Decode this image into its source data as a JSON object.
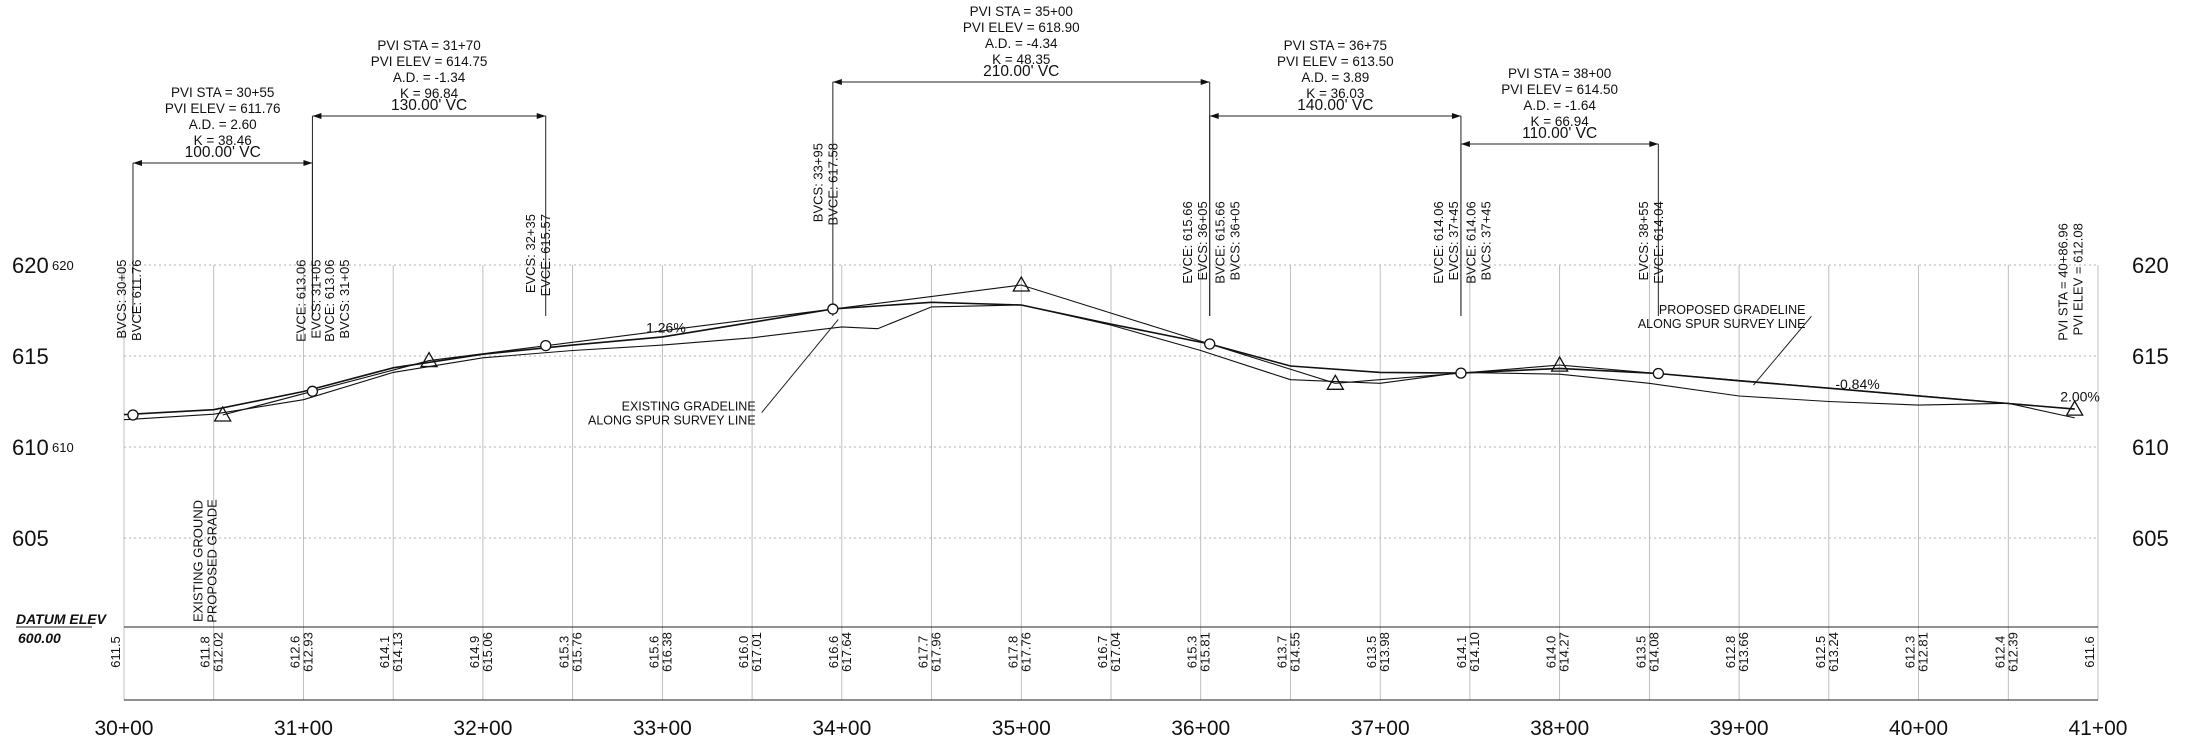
{
  "chart_data": {
    "type": "line",
    "xlim": [
      3000,
      4100
    ],
    "ylim": [
      600,
      621
    ],
    "x_ticks": [
      {
        "sta": 3000,
        "label": "30+00"
      },
      {
        "sta": 3100,
        "label": "31+00"
      },
      {
        "sta": 3200,
        "label": "32+00"
      },
      {
        "sta": 3300,
        "label": "33+00"
      },
      {
        "sta": 3400,
        "label": "34+00"
      },
      {
        "sta": 3500,
        "label": "35+00"
      },
      {
        "sta": 3600,
        "label": "36+00"
      },
      {
        "sta": 3700,
        "label": "37+00"
      },
      {
        "sta": 3800,
        "label": "38+00"
      },
      {
        "sta": 3900,
        "label": "39+00"
      },
      {
        "sta": 4000,
        "label": "40+00"
      },
      {
        "sta": 4100,
        "label": "41+00"
      }
    ],
    "y_ticks": [
      {
        "elev": 620,
        "label": "620"
      },
      {
        "elev": 615,
        "label": "615"
      },
      {
        "elev": 610,
        "label": "610"
      },
      {
        "elev": 605,
        "label": "605"
      }
    ],
    "y_ticks_small": [
      {
        "elev": 620,
        "label": "620"
      },
      {
        "elev": 610,
        "label": "610"
      }
    ],
    "datum": {
      "label": "DATUM ELEV",
      "value": "600.00"
    },
    "series": [
      {
        "name": "PROPOSED GRADELINE",
        "x": [
          3000,
          3050,
          3100,
          3150,
          3200,
          3250,
          3300,
          3350,
          3395,
          3450,
          3500,
          3550,
          3605,
          3650,
          3700,
          3745,
          3800,
          3855,
          3900,
          3950,
          4000,
          4050,
          4087
        ],
        "y": [
          611.78,
          612.05,
          613.05,
          614.35,
          615.1,
          615.6,
          616.05,
          616.85,
          617.58,
          617.95,
          617.8,
          616.75,
          615.66,
          614.45,
          614.1,
          614.06,
          614.32,
          614.04,
          613.64,
          613.23,
          612.81,
          612.39,
          612.08
        ]
      },
      {
        "name": "EXISTING GRADELINE",
        "x": [
          3000,
          3050,
          3100,
          3150,
          3200,
          3250,
          3300,
          3350,
          3400,
          3420,
          3450,
          3500,
          3550,
          3600,
          3650,
          3700,
          3745,
          3800,
          3850,
          3900,
          3950,
          4000,
          4050,
          4087
        ],
        "y": [
          611.5,
          611.8,
          612.6,
          614.1,
          614.9,
          615.3,
          615.6,
          616.0,
          616.6,
          616.5,
          617.7,
          617.8,
          616.7,
          615.3,
          613.7,
          613.5,
          614.1,
          614.0,
          613.5,
          612.8,
          612.5,
          612.3,
          612.4,
          611.6
        ]
      }
    ],
    "tangent_points": [
      {
        "x": 3055,
        "y": 611.76,
        "label": "PVI STA = 30+55"
      },
      {
        "x": 3170,
        "y": 614.75,
        "label": "PVI STA = 31+70"
      },
      {
        "x": 3500,
        "y": 618.9,
        "label": "PVI STA = 35+00"
      },
      {
        "x": 3675,
        "y": 613.5,
        "label": "PVI STA = 36+75"
      },
      {
        "x": 3800,
        "y": 614.5,
        "label": "PVI STA = 38+00"
      },
      {
        "x": 4087,
        "y": 612.08,
        "label": "PVI STA = 40+86.96"
      }
    ],
    "vc_points": [
      {
        "x": 3005,
        "y": 611.76
      },
      {
        "x": 3105,
        "y": 613.06
      },
      {
        "x": 3235,
        "y": 615.57
      },
      {
        "x": 3395,
        "y": 617.58
      },
      {
        "x": 3605,
        "y": 615.66
      },
      {
        "x": 3745,
        "y": 614.06
      },
      {
        "x": 3855,
        "y": 614.04
      }
    ],
    "curves": [
      {
        "bvc": 3005,
        "evc": 3105,
        "lines": [
          "PVI STA = 30+55",
          "PVI ELEV = 611.76",
          "A.D. = 2.60",
          "K = 38.46"
        ],
        "vc": "100.00' VC"
      },
      {
        "bvc": 3105,
        "evc": 3235,
        "lines": [
          "PVI STA = 31+70",
          "PVI ELEV = 614.75",
          "A.D. = -1.34",
          "K = 96.84"
        ],
        "vc": "130.00' VC"
      },
      {
        "bvc": 3395,
        "evc": 3605,
        "lines": [
          "PVI STA = 35+00",
          "PVI ELEV = 618.90",
          "A.D. = -4.34",
          "K = 48.35"
        ],
        "vc": "210.00' VC"
      },
      {
        "bvc": 3605,
        "evc": 3745,
        "lines": [
          "PVI STA = 36+75",
          "PVI ELEV = 613.50",
          "A.D. = 3.89",
          "K = 36.03"
        ],
        "vc": "140.00' VC"
      },
      {
        "bvc": 3745,
        "evc": 3855,
        "lines": [
          "PVI STA = 38+00",
          "PVI ELEV = 614.50",
          "A.D. = -1.64",
          "K = 66.94"
        ],
        "vc": "110.00' VC"
      }
    ],
    "station_labels": [
      {
        "x": 3000,
        "top": 620.3,
        "lines": [
          "BVCS: 30+05",
          "BVCE: 611.76"
        ]
      },
      {
        "x": 3100,
        "top": 620.3,
        "lines": [
          "EVCE: 613.06",
          "EVCS: 31+05"
        ]
      },
      {
        "x": 3116,
        "top": 620.3,
        "lines": [
          "BVCE: 613.06",
          "BVCS: 31+05"
        ]
      },
      {
        "x": 3228,
        "top": 622.8,
        "lines": [
          "EVCS: 32+35",
          "EVCE: 615.57"
        ]
      },
      {
        "x": 3388,
        "top": 626.7,
        "lines": [
          "BVCS: 33+95",
          "BVCE: 617.58"
        ]
      },
      {
        "x": 3594,
        "top": 623.5,
        "lines": [
          "EVCE: 615.66",
          "EVCS: 36+05"
        ]
      },
      {
        "x": 3612,
        "top": 623.5,
        "lines": [
          "BVCE: 615.66",
          "BVCS: 36+05"
        ]
      },
      {
        "x": 3734,
        "top": 623.5,
        "lines": [
          "EVCE: 614.06",
          "EVCS: 37+45"
        ]
      },
      {
        "x": 3752,
        "top": 623.5,
        "lines": [
          "BVCE: 614.06",
          "BVCS: 37+45"
        ]
      },
      {
        "x": 3848,
        "top": 623.5,
        "lines": [
          "EVCS: 38+55",
          "EVCE: 614.04"
        ]
      },
      {
        "x": 4082,
        "top": 622.3,
        "lines": [
          "PVI STA = 40+86.96",
          "PVI ELEV = 612.08"
        ]
      }
    ],
    "grade_labels": [
      {
        "text": "1.26%",
        "x": 3302,
        "y": 616.3
      },
      {
        "text": "-0.84%",
        "x": 3966,
        "y": 613.2
      },
      {
        "text": "2.00%",
        "x": 4090,
        "y": 612.5
      }
    ],
    "callouts": [
      {
        "lines": [
          "EXISTING GRADELINE",
          "ALONG SPUR SURVEY LINE"
        ],
        "x": 3352,
        "y": 612.0,
        "to_x": 3398,
        "to_y": 617.0
      },
      {
        "lines": [
          "PROPOSED GRADELINE",
          "ALONG SPUR SURVEY LINE"
        ],
        "x": 3937,
        "y": 617.3,
        "to_x": 3908,
        "to_y": 613.4
      }
    ],
    "legend_vertical": [
      "EXISTING GROUND",
      "PROPOSED GRADE"
    ],
    "elevation_table": [
      {
        "x": 3000,
        "existing": "611.5",
        "proposed": ""
      },
      {
        "x": 3050,
        "existing": "611.8",
        "proposed": "612.02"
      },
      {
        "x": 3100,
        "existing": "612.6",
        "proposed": "612.93"
      },
      {
        "x": 3150,
        "existing": "614.1",
        "proposed": "614.13"
      },
      {
        "x": 3200,
        "existing": "614.9",
        "proposed": "615.06"
      },
      {
        "x": 3250,
        "existing": "615.3",
        "proposed": "615.76"
      },
      {
        "x": 3300,
        "existing": "615.6",
        "proposed": "616.38"
      },
      {
        "x": 3350,
        "existing": "616.0",
        "proposed": "617.01"
      },
      {
        "x": 3400,
        "existing": "616.6",
        "proposed": "617.64"
      },
      {
        "x": 3450,
        "existing": "617.7",
        "proposed": "617.96"
      },
      {
        "x": 3500,
        "existing": "617.8",
        "proposed": "617.76"
      },
      {
        "x": 3550,
        "existing": "616.7",
        "proposed": "617.04"
      },
      {
        "x": 3600,
        "existing": "615.3",
        "proposed": "615.81"
      },
      {
        "x": 3650,
        "existing": "613.7",
        "proposed": "614.55"
      },
      {
        "x": 3700,
        "existing": "613.5",
        "proposed": "613.98"
      },
      {
        "x": 3750,
        "existing": "614.1",
        "proposed": "614.10"
      },
      {
        "x": 3800,
        "existing": "614.0",
        "proposed": "614.27"
      },
      {
        "x": 3850,
        "existing": "613.5",
        "proposed": "614.08"
      },
      {
        "x": 3900,
        "existing": "612.8",
        "proposed": "613.66"
      },
      {
        "x": 3950,
        "existing": "612.5",
        "proposed": "613.24"
      },
      {
        "x": 4000,
        "existing": "612.3",
        "proposed": "612.81"
      },
      {
        "x": 4050,
        "existing": "612.4",
        "proposed": "612.39"
      },
      {
        "x": 4100,
        "existing": "611.6",
        "proposed": ""
      }
    ]
  }
}
